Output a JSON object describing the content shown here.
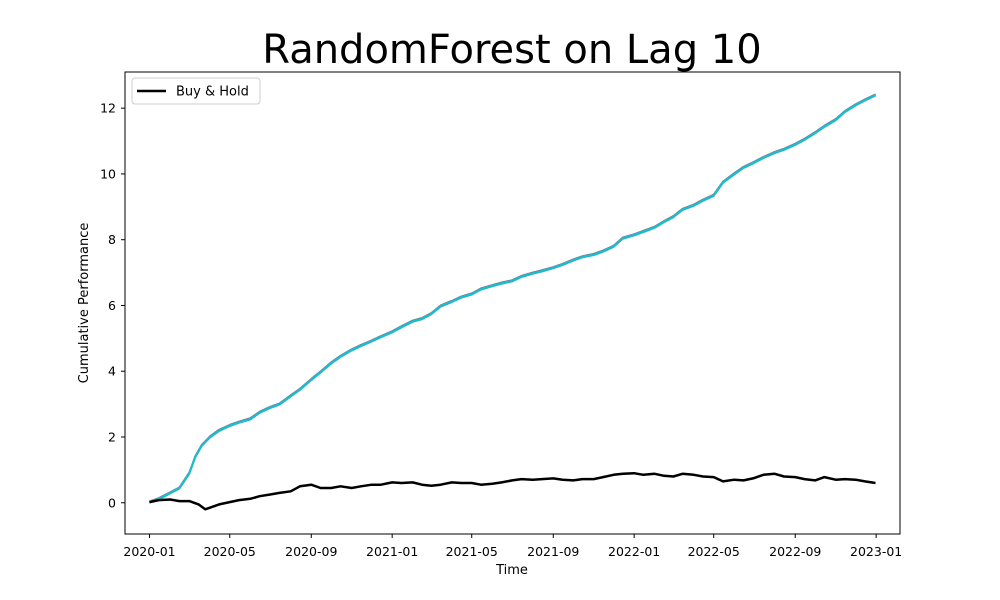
{
  "chart_data": {
    "type": "line",
    "title": "RandomForest on Lag 10",
    "xlabel": "Time",
    "ylabel": "Cumulative Performance",
    "xlim": [
      "2019-11-25",
      "2023-02-06"
    ],
    "ylim": [
      -0.95,
      13.1
    ],
    "x_ticks": [
      "2020-01",
      "2020-05",
      "2020-09",
      "2021-01",
      "2021-05",
      "2021-09",
      "2022-01",
      "2022-05",
      "2022-09",
      "2023-01"
    ],
    "y_ticks": [
      0,
      2,
      4,
      6,
      8,
      10,
      12
    ],
    "grid": false,
    "legend": {
      "position": "top-left",
      "entries": [
        "Buy & Hold"
      ]
    },
    "strategy_colors": [
      "#1f77b4",
      "#ff7f0e",
      "#2ca02c",
      "#d62728",
      "#9467bd",
      "#8c564b",
      "#e377c2",
      "#7f7f7f",
      "#bcbd22",
      "#17becf"
    ],
    "series": [
      {
        "name": "",
        "color": "#17becf",
        "x": [
          "2020-01-01",
          "2020-01-15",
          "2020-02-01",
          "2020-02-15",
          "2020-03-01",
          "2020-03-10",
          "2020-03-20",
          "2020-04-01",
          "2020-04-15",
          "2020-05-01",
          "2020-05-15",
          "2020-06-01",
          "2020-06-15",
          "2020-07-01",
          "2020-07-15",
          "2020-08-01",
          "2020-08-15",
          "2020-09-01",
          "2020-09-15",
          "2020-10-01",
          "2020-10-15",
          "2020-11-01",
          "2020-11-15",
          "2020-12-01",
          "2020-12-15",
          "2021-01-01",
          "2021-01-15",
          "2021-02-01",
          "2021-02-15",
          "2021-03-01",
          "2021-03-15",
          "2021-04-01",
          "2021-04-15",
          "2021-05-01",
          "2021-05-15",
          "2021-06-01",
          "2021-06-15",
          "2021-07-01",
          "2021-07-15",
          "2021-08-01",
          "2021-08-15",
          "2021-09-01",
          "2021-09-15",
          "2021-10-01",
          "2021-10-15",
          "2021-11-01",
          "2021-11-15",
          "2021-12-01",
          "2021-12-15",
          "2022-01-01",
          "2022-01-15",
          "2022-02-01",
          "2022-02-15",
          "2022-03-01",
          "2022-03-15",
          "2022-04-01",
          "2022-04-15",
          "2022-05-01",
          "2022-05-15",
          "2022-06-01",
          "2022-06-15",
          "2022-07-01",
          "2022-07-15",
          "2022-08-01",
          "2022-08-15",
          "2022-09-01",
          "2022-09-15",
          "2022-10-01",
          "2022-10-15",
          "2022-11-01",
          "2022-11-15",
          "2022-12-01",
          "2022-12-15",
          "2022-12-31"
        ],
        "values": [
          0.02,
          0.12,
          0.3,
          0.45,
          0.9,
          1.4,
          1.75,
          2.0,
          2.2,
          2.35,
          2.45,
          2.55,
          2.75,
          2.9,
          3.0,
          3.25,
          3.45,
          3.75,
          3.98,
          4.25,
          4.45,
          4.65,
          4.78,
          4.92,
          5.05,
          5.2,
          5.35,
          5.52,
          5.6,
          5.75,
          5.98,
          6.12,
          6.25,
          6.35,
          6.5,
          6.6,
          6.68,
          6.75,
          6.88,
          6.98,
          7.05,
          7.15,
          7.25,
          7.38,
          7.48,
          7.55,
          7.65,
          7.8,
          8.05,
          8.15,
          8.25,
          8.38,
          8.55,
          8.7,
          8.92,
          9.05,
          9.2,
          9.35,
          9.75,
          10.0,
          10.2,
          10.35,
          10.5,
          10.65,
          10.75,
          10.9,
          11.05,
          11.25,
          11.45,
          11.65,
          11.9,
          12.1,
          12.25,
          12.4
        ]
      },
      {
        "name": "Buy & Hold",
        "color": "#000000",
        "x": [
          "2020-01-01",
          "2020-01-15",
          "2020-02-01",
          "2020-02-15",
          "2020-03-01",
          "2020-03-15",
          "2020-03-25",
          "2020-04-01",
          "2020-04-15",
          "2020-05-01",
          "2020-05-15",
          "2020-06-01",
          "2020-06-15",
          "2020-07-01",
          "2020-07-15",
          "2020-08-01",
          "2020-08-15",
          "2020-09-01",
          "2020-09-15",
          "2020-10-01",
          "2020-10-15",
          "2020-11-01",
          "2020-11-15",
          "2020-12-01",
          "2020-12-15",
          "2021-01-01",
          "2021-01-15",
          "2021-02-01",
          "2021-02-15",
          "2021-03-01",
          "2021-03-15",
          "2021-04-01",
          "2021-04-15",
          "2021-05-01",
          "2021-05-15",
          "2021-06-01",
          "2021-06-15",
          "2021-07-01",
          "2021-07-15",
          "2021-08-01",
          "2021-08-15",
          "2021-09-01",
          "2021-09-15",
          "2021-10-01",
          "2021-10-15",
          "2021-11-01",
          "2021-11-15",
          "2021-12-01",
          "2021-12-15",
          "2022-01-01",
          "2022-01-15",
          "2022-02-01",
          "2022-02-15",
          "2022-03-01",
          "2022-03-15",
          "2022-04-01",
          "2022-04-15",
          "2022-05-01",
          "2022-05-15",
          "2022-06-01",
          "2022-06-15",
          "2022-07-01",
          "2022-07-15",
          "2022-08-01",
          "2022-08-15",
          "2022-09-01",
          "2022-09-15",
          "2022-10-01",
          "2022-10-15",
          "2022-11-01",
          "2022-11-15",
          "2022-12-01",
          "2022-12-15",
          "2022-12-31"
        ],
        "values": [
          0.02,
          0.08,
          0.1,
          0.05,
          0.05,
          -0.05,
          -0.2,
          -0.15,
          -0.05,
          0.02,
          0.08,
          0.12,
          0.2,
          0.25,
          0.3,
          0.35,
          0.5,
          0.55,
          0.45,
          0.45,
          0.5,
          0.45,
          0.5,
          0.55,
          0.55,
          0.62,
          0.6,
          0.62,
          0.55,
          0.52,
          0.55,
          0.62,
          0.6,
          0.6,
          0.55,
          0.58,
          0.62,
          0.68,
          0.72,
          0.7,
          0.72,
          0.74,
          0.7,
          0.68,
          0.72,
          0.72,
          0.78,
          0.85,
          0.88,
          0.9,
          0.85,
          0.88,
          0.82,
          0.8,
          0.88,
          0.85,
          0.8,
          0.78,
          0.65,
          0.7,
          0.68,
          0.75,
          0.85,
          0.88,
          0.8,
          0.78,
          0.72,
          0.68,
          0.78,
          0.7,
          0.72,
          0.7,
          0.65,
          0.6
        ]
      }
    ]
  }
}
